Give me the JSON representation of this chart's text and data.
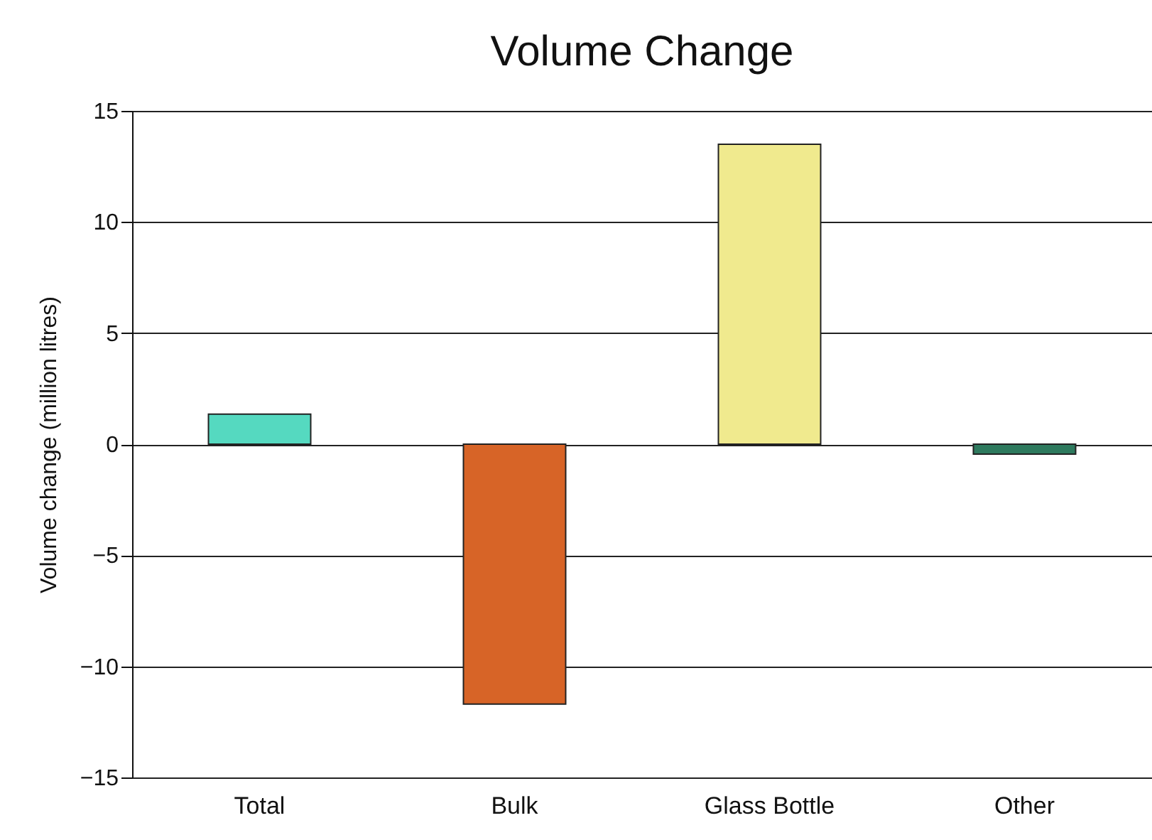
{
  "chart_data": {
    "type": "bar",
    "title": "Volume Change",
    "ylabel": "Volume change (million litres)",
    "categories": [
      "Total",
      "Bulk",
      "Glass Bottle",
      "Other"
    ],
    "values": [
      1.35,
      -11.7,
      13.5,
      -0.45
    ],
    "colors": [
      "#55d9c0",
      "#d76427",
      "#f0ea8e",
      "#2e7a5e"
    ],
    "ylim": [
      -15,
      15
    ],
    "yticks": [
      -15,
      -10,
      -5,
      0,
      5,
      10,
      15
    ],
    "grid": "y"
  }
}
